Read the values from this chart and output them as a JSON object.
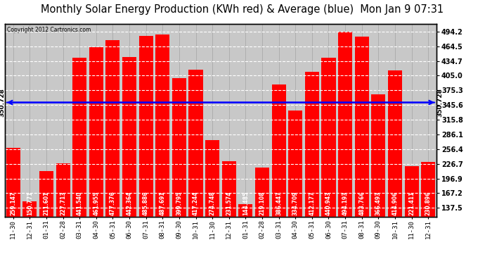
{
  "title": "Monthly Solar Energy Production (KWh red) & Average (blue)  Mon Jan 9 07:31",
  "copyright": "Copyright 2012 Cartronics.com",
  "average": 350.728,
  "categories": [
    "11-30",
    "12-31",
    "01-31",
    "02-28",
    "03-31",
    "04-30",
    "05-31",
    "06-30",
    "07-31",
    "08-31",
    "09-30",
    "10-31",
    "11-30",
    "12-31",
    "01-31",
    "02-28",
    "03-31",
    "04-30",
    "05-31",
    "06-30",
    "07-31",
    "08-31",
    "09-30",
    "10-31",
    "11-30",
    "12-31"
  ],
  "values": [
    259.147,
    150.771,
    211.601,
    227.713,
    441.54,
    461.955,
    477.376,
    442.364,
    485.886,
    487.691,
    399.795,
    417.244,
    274.748,
    231.574,
    144.485,
    219.108,
    386.447,
    334.709,
    412.177,
    440.943,
    494.193,
    483.766,
    366.493,
    414.906,
    221.411,
    230.896
  ],
  "bar_color": "#ff0000",
  "avg_line_color": "#0000ff",
  "background_color": "#ffffff",
  "plot_bg_color": "#c8c8c8",
  "grid_color": "#ffffff",
  "title_fontsize": 10.5,
  "bar_label_fontsize": 5.5,
  "xlabel_fontsize": 6.5,
  "ylabel_right_ticks": [
    137.5,
    167.2,
    196.9,
    226.7,
    256.4,
    286.1,
    315.8,
    345.6,
    375.3,
    405.0,
    434.7,
    464.5,
    494.2
  ],
  "ylim": [
    120,
    510
  ],
  "avg_label": "350.728"
}
